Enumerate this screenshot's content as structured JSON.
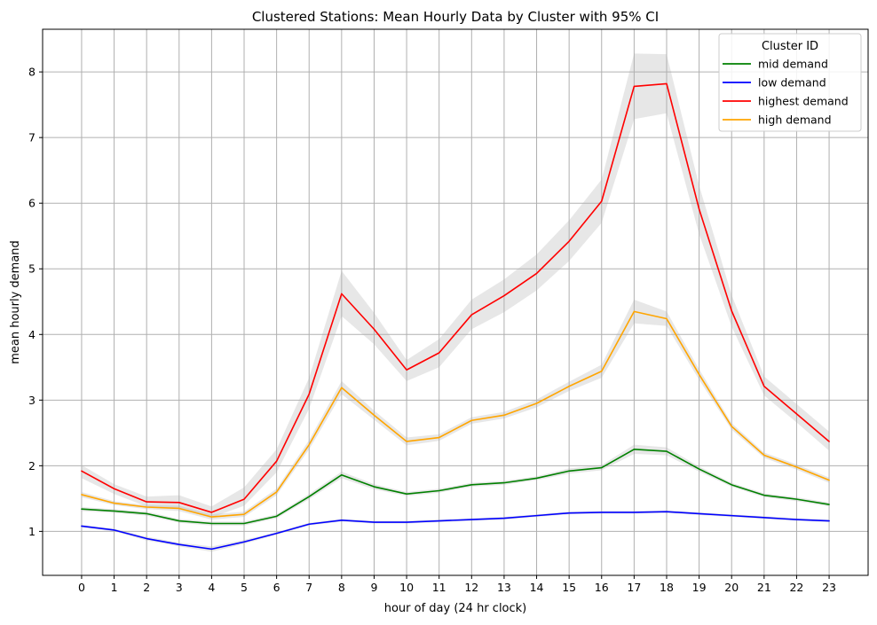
{
  "chart_data": {
    "type": "line",
    "title": "Clustered Stations: Mean Hourly Data by Cluster with 95% CI",
    "xlabel": "hour of day (24 hr clock)",
    "ylabel": "mean hourly demand",
    "x": [
      0,
      1,
      2,
      3,
      4,
      5,
      6,
      7,
      8,
      9,
      10,
      11,
      12,
      13,
      14,
      15,
      16,
      17,
      18,
      19,
      20,
      21,
      22,
      23
    ],
    "xlim": [
      -1.2,
      24.2
    ],
    "ylim": [
      0.33,
      8.65
    ],
    "yticks": [
      1,
      2,
      3,
      4,
      5,
      6,
      7,
      8
    ],
    "grid": true,
    "legend": {
      "title": "Cluster ID",
      "placement": "top-right"
    },
    "ci_band_color": "#b0b0b0",
    "series": [
      {
        "name": "mid demand",
        "color": "#008000",
        "values": [
          1.34,
          1.31,
          1.27,
          1.16,
          1.12,
          1.12,
          1.23,
          1.53,
          1.86,
          1.68,
          1.57,
          1.62,
          1.71,
          1.74,
          1.81,
          1.92,
          1.97,
          2.25,
          2.22,
          1.95,
          1.71,
          1.55,
          1.49,
          1.41
        ],
        "ci_lower": [
          1.31,
          1.28,
          1.24,
          1.13,
          1.09,
          1.09,
          1.2,
          1.49,
          1.81,
          1.64,
          1.54,
          1.59,
          1.68,
          1.71,
          1.78,
          1.88,
          1.93,
          2.18,
          2.16,
          1.91,
          1.68,
          1.52,
          1.46,
          1.38
        ],
        "ci_upper": [
          1.37,
          1.34,
          1.3,
          1.19,
          1.15,
          1.15,
          1.26,
          1.57,
          1.91,
          1.72,
          1.6,
          1.65,
          1.74,
          1.77,
          1.84,
          1.96,
          2.01,
          2.32,
          2.28,
          1.99,
          1.74,
          1.58,
          1.52,
          1.44
        ]
      },
      {
        "name": "low demand",
        "color": "#0000ff",
        "values": [
          1.08,
          1.02,
          0.89,
          0.8,
          0.73,
          0.84,
          0.97,
          1.11,
          1.17,
          1.14,
          1.14,
          1.16,
          1.18,
          1.2,
          1.24,
          1.28,
          1.29,
          1.29,
          1.3,
          1.27,
          1.24,
          1.21,
          1.18,
          1.16
        ],
        "ci_lower": [
          1.06,
          1.0,
          0.86,
          0.77,
          0.69,
          0.81,
          0.95,
          1.09,
          1.15,
          1.12,
          1.12,
          1.14,
          1.16,
          1.18,
          1.22,
          1.26,
          1.27,
          1.27,
          1.28,
          1.25,
          1.22,
          1.19,
          1.16,
          1.14
        ],
        "ci_upper": [
          1.1,
          1.04,
          0.92,
          0.83,
          0.77,
          0.87,
          0.99,
          1.13,
          1.19,
          1.16,
          1.16,
          1.18,
          1.2,
          1.22,
          1.26,
          1.3,
          1.31,
          1.31,
          1.32,
          1.29,
          1.26,
          1.23,
          1.2,
          1.18
        ]
      },
      {
        "name": "highest demand",
        "color": "#ff0000",
        "values": [
          1.92,
          1.65,
          1.45,
          1.44,
          1.29,
          1.49,
          2.07,
          3.09,
          4.62,
          4.08,
          3.46,
          3.72,
          4.3,
          4.59,
          4.93,
          5.42,
          6.03,
          7.78,
          7.82,
          5.91,
          4.36,
          3.21,
          2.79,
          2.37
        ],
        "ci_lower": [
          1.81,
          1.57,
          1.38,
          1.36,
          1.21,
          1.39,
          1.9,
          2.87,
          4.28,
          3.85,
          3.29,
          3.5,
          4.08,
          4.34,
          4.67,
          5.12,
          5.7,
          7.28,
          7.37,
          5.53,
          4.12,
          3.07,
          2.66,
          2.23
        ],
        "ci_upper": [
          2.01,
          1.72,
          1.53,
          1.55,
          1.38,
          1.67,
          2.25,
          3.34,
          4.97,
          4.33,
          3.61,
          3.93,
          4.53,
          4.84,
          5.22,
          5.74,
          6.36,
          8.28,
          8.27,
          6.27,
          4.6,
          3.36,
          2.94,
          2.52
        ]
      },
      {
        "name": "high demand",
        "color": "#ffa500",
        "values": [
          1.56,
          1.43,
          1.37,
          1.35,
          1.22,
          1.26,
          1.6,
          2.32,
          3.19,
          2.77,
          2.37,
          2.43,
          2.69,
          2.77,
          2.95,
          3.21,
          3.44,
          4.35,
          4.24,
          3.39,
          2.6,
          2.16,
          1.98,
          1.78
        ],
        "ci_lower": [
          1.52,
          1.4,
          1.34,
          1.31,
          1.18,
          1.22,
          1.55,
          2.25,
          3.09,
          2.7,
          2.31,
          2.38,
          2.64,
          2.72,
          2.89,
          3.14,
          3.34,
          4.17,
          4.13,
          3.31,
          2.55,
          2.12,
          1.94,
          1.74
        ],
        "ci_upper": [
          1.6,
          1.46,
          1.4,
          1.39,
          1.26,
          1.3,
          1.65,
          2.39,
          3.29,
          2.84,
          2.43,
          2.48,
          2.74,
          2.82,
          3.01,
          3.28,
          3.54,
          4.53,
          4.35,
          3.47,
          2.65,
          2.2,
          2.02,
          1.82
        ]
      }
    ]
  }
}
